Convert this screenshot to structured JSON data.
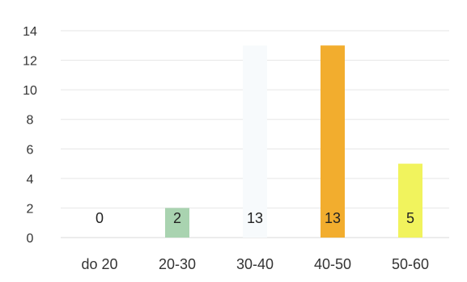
{
  "chart_data": {
    "type": "bar",
    "title": "",
    "xlabel": "",
    "ylabel": "",
    "ylim": [
      0,
      14
    ],
    "y_ticks": [
      0,
      2,
      4,
      6,
      8,
      10,
      12,
      14
    ],
    "grid": true,
    "legend": "none",
    "categories": [
      "do 20",
      "20-30",
      "30-40",
      "40-50",
      "50-60"
    ],
    "values": [
      0,
      2,
      13,
      13,
      5
    ],
    "data_labels": [
      "0",
      "2",
      "13",
      "13",
      "5"
    ],
    "bar_colors": [
      "#c8c8c8",
      "#a9d3b0",
      "#f7fafc",
      "#f2ad2e",
      "#f1f35d"
    ]
  }
}
